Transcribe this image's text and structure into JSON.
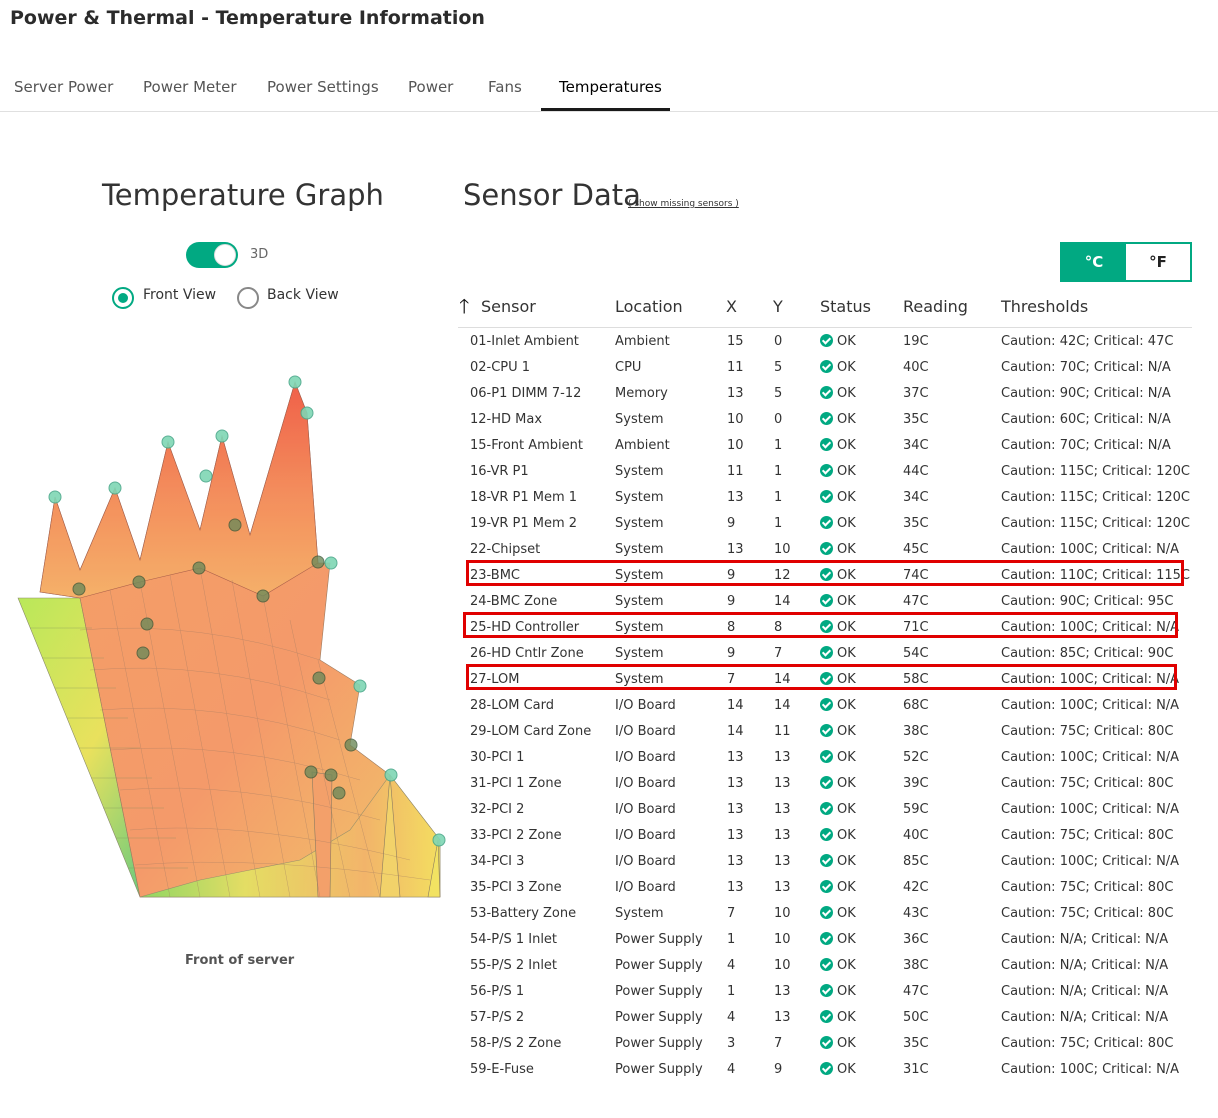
{
  "page_title": "Power & Thermal - Temperature Information",
  "tabs": [
    {
      "label": "Server Power",
      "active": false
    },
    {
      "label": "Power Meter",
      "active": false
    },
    {
      "label": "Power Settings",
      "active": false
    },
    {
      "label": "Power",
      "active": false
    },
    {
      "label": "Fans",
      "active": false
    },
    {
      "label": "Temperatures",
      "active": true
    }
  ],
  "graph": {
    "title": "Temperature Graph",
    "toggle_label": "3D",
    "toggle_on": true,
    "front_view_label": "Front View",
    "back_view_label": "Back View",
    "selected_view": "Front View",
    "caption": "Front of server"
  },
  "sensor_data": {
    "title": "Sensor Data",
    "missing_link": "( show missing sensors )",
    "unit_celsius": "°C",
    "unit_fahrenheit": "°F",
    "selected_unit": "°C",
    "columns": [
      "Sensor",
      "Location",
      "X",
      "Y",
      "Status",
      "Reading",
      "Thresholds"
    ],
    "sort_indicator": "🡑",
    "rows": [
      {
        "sensor": "01-Inlet Ambient",
        "location": "Ambient",
        "x": "15",
        "y": "0",
        "status": "OK",
        "reading": "19C",
        "thresholds": "Caution: 42C; Critical: 47C"
      },
      {
        "sensor": "02-CPU 1",
        "location": "CPU",
        "x": "11",
        "y": "5",
        "status": "OK",
        "reading": "40C",
        "thresholds": "Caution: 70C; Critical: N/A"
      },
      {
        "sensor": "06-P1 DIMM 7-12",
        "location": "Memory",
        "x": "13",
        "y": "5",
        "status": "OK",
        "reading": "37C",
        "thresholds": "Caution: 90C; Critical: N/A"
      },
      {
        "sensor": "12-HD Max",
        "location": "System",
        "x": "10",
        "y": "0",
        "status": "OK",
        "reading": "35C",
        "thresholds": "Caution: 60C; Critical: N/A"
      },
      {
        "sensor": "15-Front Ambient",
        "location": "Ambient",
        "x": "10",
        "y": "1",
        "status": "OK",
        "reading": "34C",
        "thresholds": "Caution: 70C; Critical: N/A"
      },
      {
        "sensor": "16-VR P1",
        "location": "System",
        "x": "11",
        "y": "1",
        "status": "OK",
        "reading": "44C",
        "thresholds": "Caution: 115C; Critical: 120C"
      },
      {
        "sensor": "18-VR P1 Mem 1",
        "location": "System",
        "x": "13",
        "y": "1",
        "status": "OK",
        "reading": "34C",
        "thresholds": "Caution: 115C; Critical: 120C"
      },
      {
        "sensor": "19-VR P1 Mem 2",
        "location": "System",
        "x": "9",
        "y": "1",
        "status": "OK",
        "reading": "35C",
        "thresholds": "Caution: 115C; Critical: 120C"
      },
      {
        "sensor": "22-Chipset",
        "location": "System",
        "x": "13",
        "y": "10",
        "status": "OK",
        "reading": "45C",
        "thresholds": "Caution: 100C; Critical: N/A"
      },
      {
        "sensor": "23-BMC",
        "location": "System",
        "x": "9",
        "y": "12",
        "status": "OK",
        "reading": "74C",
        "thresholds": "Caution: 110C; Critical: 115C",
        "highlighted": true
      },
      {
        "sensor": "24-BMC Zone",
        "location": "System",
        "x": "9",
        "y": "14",
        "status": "OK",
        "reading": "47C",
        "thresholds": "Caution: 90C; Critical: 95C"
      },
      {
        "sensor": "25-HD Controller",
        "location": "System",
        "x": "8",
        "y": "8",
        "status": "OK",
        "reading": "71C",
        "thresholds": "Caution: 100C; Critical: N/A",
        "highlighted": true
      },
      {
        "sensor": "26-HD Cntlr Zone",
        "location": "System",
        "x": "9",
        "y": "7",
        "status": "OK",
        "reading": "54C",
        "thresholds": "Caution: 85C; Critical: 90C"
      },
      {
        "sensor": "27-LOM",
        "location": "System",
        "x": "7",
        "y": "14",
        "status": "OK",
        "reading": "58C",
        "thresholds": "Caution: 100C; Critical: N/A",
        "highlighted": true
      },
      {
        "sensor": "28-LOM Card",
        "location": "I/O Board",
        "x": "14",
        "y": "14",
        "status": "OK",
        "reading": "68C",
        "thresholds": "Caution: 100C; Critical: N/A"
      },
      {
        "sensor": "29-LOM Card Zone",
        "location": "I/O Board",
        "x": "14",
        "y": "11",
        "status": "OK",
        "reading": "38C",
        "thresholds": "Caution: 75C; Critical: 80C"
      },
      {
        "sensor": "30-PCI 1",
        "location": "I/O Board",
        "x": "13",
        "y": "13",
        "status": "OK",
        "reading": "52C",
        "thresholds": "Caution: 100C; Critical: N/A"
      },
      {
        "sensor": "31-PCI 1 Zone",
        "location": "I/O Board",
        "x": "13",
        "y": "13",
        "status": "OK",
        "reading": "39C",
        "thresholds": "Caution: 75C; Critical: 80C"
      },
      {
        "sensor": "32-PCI 2",
        "location": "I/O Board",
        "x": "13",
        "y": "13",
        "status": "OK",
        "reading": "59C",
        "thresholds": "Caution: 100C; Critical: N/A"
      },
      {
        "sensor": "33-PCI 2 Zone",
        "location": "I/O Board",
        "x": "13",
        "y": "13",
        "status": "OK",
        "reading": "40C",
        "thresholds": "Caution: 75C; Critical: 80C"
      },
      {
        "sensor": "34-PCI 3",
        "location": "I/O Board",
        "x": "13",
        "y": "13",
        "status": "OK",
        "reading": "85C",
        "thresholds": "Caution: 100C; Critical: N/A"
      },
      {
        "sensor": "35-PCI 3 Zone",
        "location": "I/O Board",
        "x": "13",
        "y": "13",
        "status": "OK",
        "reading": "42C",
        "thresholds": "Caution: 75C; Critical: 80C"
      },
      {
        "sensor": "53-Battery Zone",
        "location": "System",
        "x": "7",
        "y": "10",
        "status": "OK",
        "reading": "43C",
        "thresholds": "Caution: 75C; Critical: 80C"
      },
      {
        "sensor": "54-P/S 1 Inlet",
        "location": "Power Supply",
        "x": "1",
        "y": "10",
        "status": "OK",
        "reading": "36C",
        "thresholds": "Caution: N/A; Critical: N/A"
      },
      {
        "sensor": "55-P/S 2 Inlet",
        "location": "Power Supply",
        "x": "4",
        "y": "10",
        "status": "OK",
        "reading": "38C",
        "thresholds": "Caution: N/A; Critical: N/A"
      },
      {
        "sensor": "56-P/S 1",
        "location": "Power Supply",
        "x": "1",
        "y": "13",
        "status": "OK",
        "reading": "47C",
        "thresholds": "Caution: N/A; Critical: N/A"
      },
      {
        "sensor": "57-P/S 2",
        "location": "Power Supply",
        "x": "4",
        "y": "13",
        "status": "OK",
        "reading": "50C",
        "thresholds": "Caution: N/A; Critical: N/A"
      },
      {
        "sensor": "58-P/S 2 Zone",
        "location": "Power Supply",
        "x": "3",
        "y": "7",
        "status": "OK",
        "reading": "35C",
        "thresholds": "Caution: 75C; Critical: 80C"
      },
      {
        "sensor": "59-E-Fuse",
        "location": "Power Supply",
        "x": "4",
        "y": "9",
        "status": "OK",
        "reading": "31C",
        "thresholds": "Caution: 100C; Critical: N/A"
      }
    ]
  },
  "colors": {
    "accent": "#01a982",
    "highlight": "#e00000"
  }
}
